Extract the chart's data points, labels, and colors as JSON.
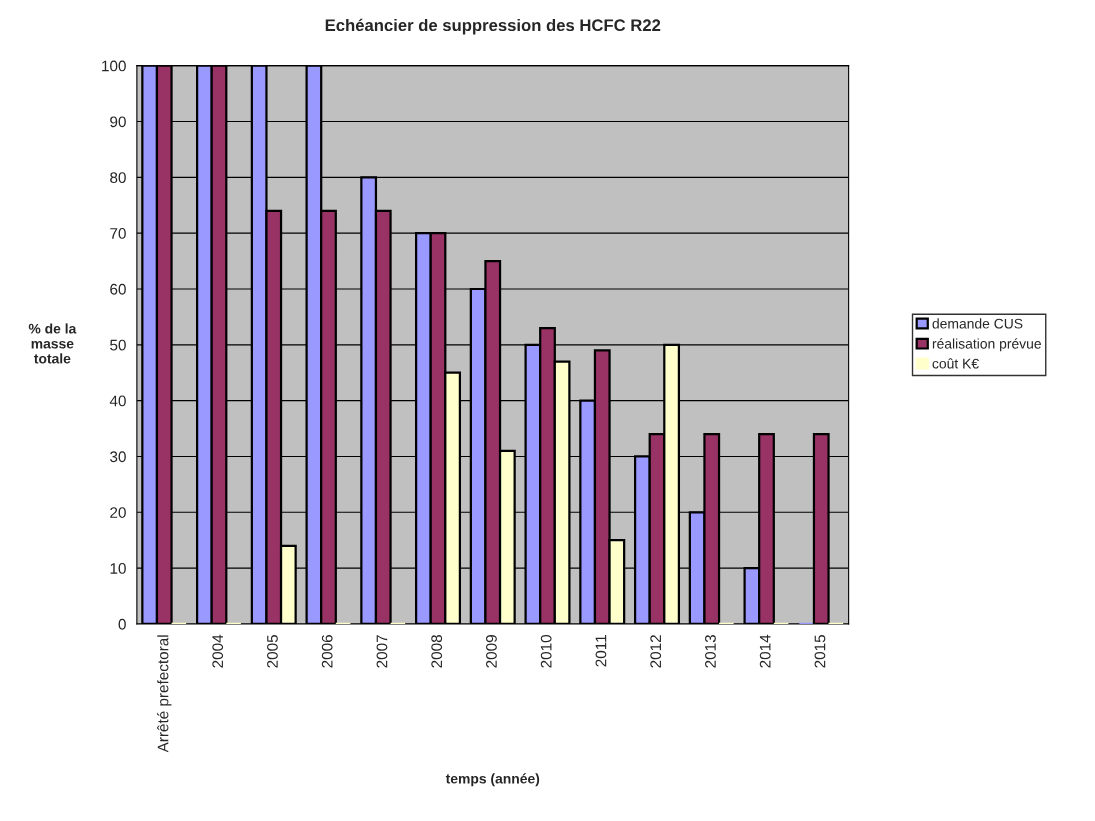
{
  "chart_data": {
    "type": "bar",
    "title": "Echéancier de suppression des HCFC R22",
    "xlabel": "temps (année)",
    "ylabel": "% de la\nmasse\ntotale",
    "categories": [
      "Arrêté prefectoral",
      "2004",
      "2005",
      "2006",
      "2007",
      "2008",
      "2009",
      "2010",
      "2011",
      "2012",
      "2013",
      "2014",
      "2015"
    ],
    "series": [
      {
        "name": "demande CUS",
        "color": "#9999ff",
        "values": [
          100,
          100,
          100,
          100,
          80,
          70,
          60,
          50,
          40,
          30,
          20,
          10,
          0
        ]
      },
      {
        "name": "réalisation prévue",
        "color": "#993366",
        "values": [
          100,
          100,
          74,
          74,
          74,
          70,
          65,
          53,
          49,
          34,
          34,
          34,
          34
        ]
      },
      {
        "name": "coût K€",
        "color": "#ffffcc",
        "values": [
          0,
          0,
          14,
          0,
          0,
          45,
          31,
          47,
          15,
          50,
          0,
          0,
          0
        ]
      }
    ],
    "ylim": [
      0,
      100
    ],
    "yticks": [
      0,
      10,
      20,
      30,
      40,
      50,
      60,
      70,
      80,
      90,
      100
    ],
    "grid": "y",
    "legend": "right"
  }
}
